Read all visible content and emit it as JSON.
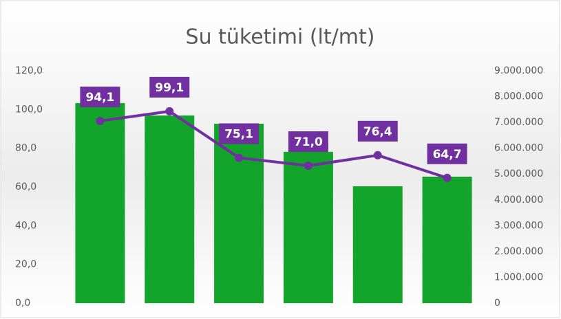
{
  "chart_data": {
    "type": "combo",
    "title": "Su tüketimi (lt/mt)",
    "categories": [
      null,
      null,
      null,
      null,
      null,
      null
    ],
    "series": [
      {
        "type": "bar",
        "axis": "y2",
        "color": "#13a42b",
        "values": [
          7750000,
          7270000,
          6950000,
          5860000,
          4530000,
          4900000
        ]
      },
      {
        "type": "line",
        "axis": "y",
        "color": "#7030a0",
        "values": [
          94.1,
          99.1,
          75.1,
          71.0,
          76.4,
          64.7
        ],
        "value_labels": [
          "94,1",
          "99,1",
          "75,1",
          "71,0",
          "76,4",
          "64,7"
        ]
      }
    ],
    "ylim": [
      0,
      120
    ],
    "yticks": [
      {
        "value": 0,
        "label": "0,0"
      },
      {
        "value": 20,
        "label": "20,0"
      },
      {
        "value": 40,
        "label": "40,0"
      },
      {
        "value": 60,
        "label": "60,0"
      },
      {
        "value": 80,
        "label": "80,0"
      },
      {
        "value": 100,
        "label": "100,0"
      },
      {
        "value": 120,
        "label": "120,0"
      }
    ],
    "y2lim": [
      0,
      9000000
    ],
    "y2ticks": [
      0,
      {
        "value": 1000000,
        "label": "1.000.000"
      },
      {
        "value": 2000000,
        "label": "2.000.000"
      },
      {
        "value": 3000000,
        "label": "3.000.000"
      },
      {
        "value": 4000000,
        "label": "4.000.000"
      },
      {
        "value": 5000000,
        "label": "5.000.000"
      },
      {
        "value": 6000000,
        "label": "6.000.000"
      },
      {
        "value": 7000000,
        "label": "7.000.000"
      },
      {
        "value": 8000000,
        "label": "8.000.000"
      },
      {
        "value": 9000000,
        "label": "9.000.000"
      }
    ],
    "grid": false
  }
}
